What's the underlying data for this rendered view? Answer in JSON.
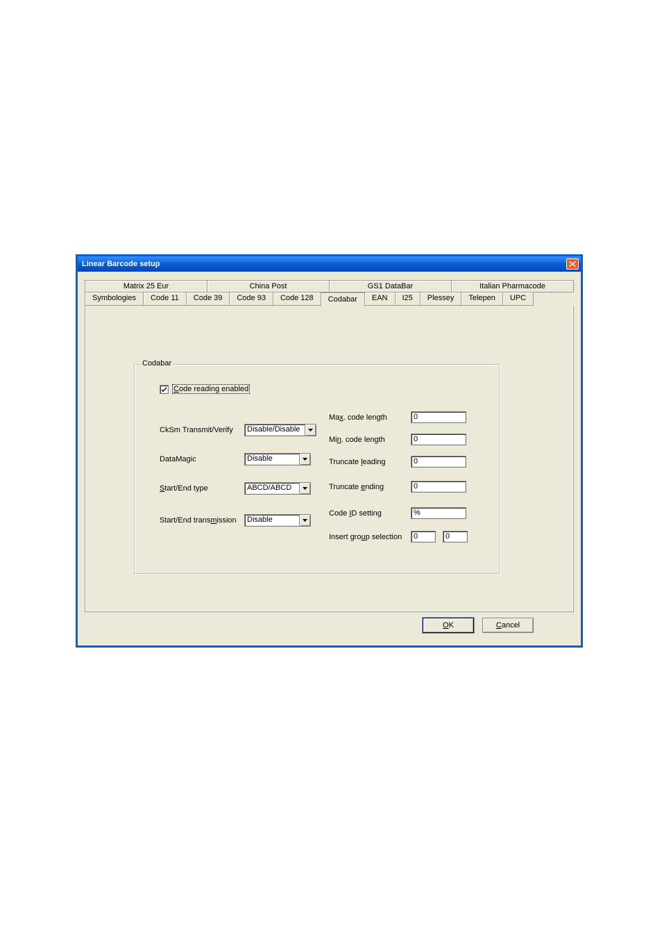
{
  "window": {
    "title": "Linear Barcode setup"
  },
  "tabs": {
    "row1": [
      "Matrix 25 Eur",
      "China Post",
      "GS1 DataBar",
      "Italian Pharmacode"
    ],
    "row2": [
      "Symbologies",
      "Code 11",
      "Code 39",
      "Code 93",
      "Code 128",
      "Codabar",
      "EAN",
      "I25",
      "Plessey",
      "Telepen",
      "UPC"
    ],
    "active": "Codabar"
  },
  "group": {
    "title": "Codabar",
    "code_reading_enabled_label": "Code reading enabled",
    "code_reading_enabled_checked": true,
    "cksm_label": "CkSm Transmit/Verify",
    "cksm_value": "Disable/Disable",
    "datamagic_label": "DataMagic",
    "datamagic_value": "Disable",
    "startend_type_label_pre": "S",
    "startend_type_label_post": "tart/End type",
    "startend_type_value": "ABCD/ABCD",
    "startend_trans_label_pre": "Start/End trans",
    "startend_trans_label_ul": "m",
    "startend_trans_label_post": "ission",
    "startend_trans_value": "Disable",
    "max_len_label_pre": "Ma",
    "max_len_label_ul": "x",
    "max_len_label_post": ". code length",
    "max_len_value": "0",
    "min_len_label_pre": "Mi",
    "min_len_label_ul": "n",
    "min_len_label_post": ". code length",
    "min_len_value": "0",
    "trunc_lead_label_pre": "Truncate ",
    "trunc_lead_label_ul": "l",
    "trunc_lead_label_post": "eading",
    "trunc_lead_value": "0",
    "trunc_end_label_pre": "Truncate ",
    "trunc_end_label_ul": "e",
    "trunc_end_label_post": "nding",
    "trunc_end_value": "0",
    "codeid_label_pre": "Code ",
    "codeid_label_ul": "I",
    "codeid_label_post": "D setting",
    "codeid_value": "%",
    "insgrp_label_pre": "Insert gro",
    "insgrp_label_ul": "u",
    "insgrp_label_post": "p selection",
    "insgrp_value1": "0",
    "insgrp_value2": "0"
  },
  "buttons": {
    "ok_ul": "O",
    "ok_post": "K",
    "cancel_ul": "C",
    "cancel_post": "ancel"
  },
  "colors": {
    "dialog_bg": "#ece9d8",
    "titlebar_grad_top": "#3a8cff",
    "titlebar_grad_mid": "#0a5fd3",
    "titlebar_grad_bot": "#0046b7",
    "close_bg": "#e85d2a",
    "border_3d_dark": "#808080",
    "border_3d_light": "#ffffff",
    "tab_border": "#919b9c"
  }
}
